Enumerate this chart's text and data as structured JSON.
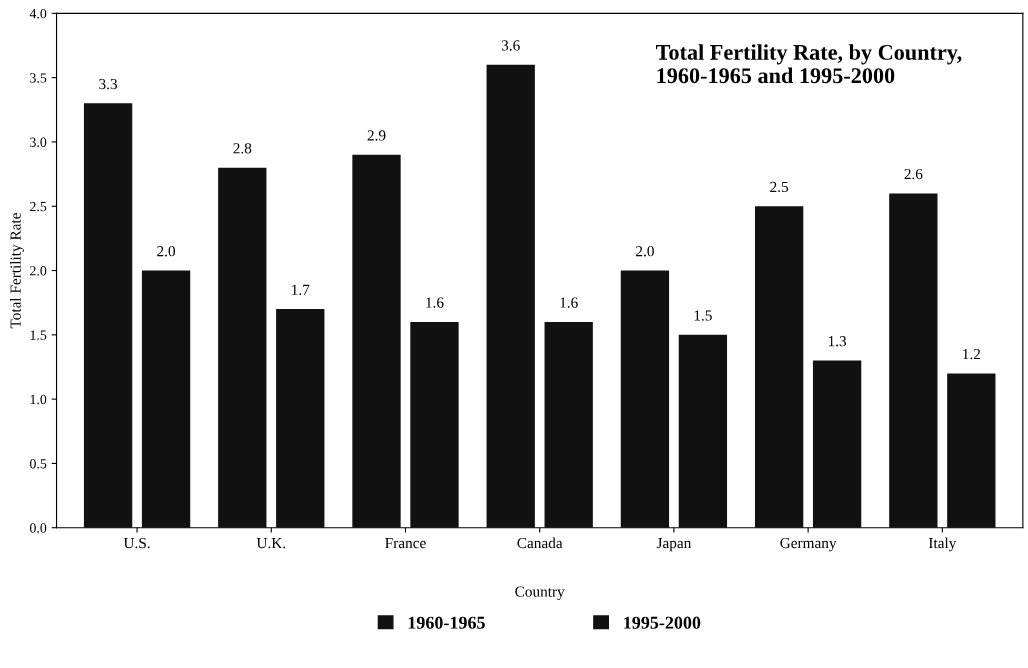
{
  "chart_data": {
    "type": "bar",
    "title": "Total Fertility Rate, by Country,\n1960-1965 and 1995-2000",
    "xlabel": "Country",
    "ylabel": "Total Fertility Rate",
    "categories": [
      "U.S.",
      "U.K.",
      "France",
      "Canada",
      "Japan",
      "Germany",
      "Italy"
    ],
    "series": [
      {
        "name": "1960-1965",
        "color": "#111111",
        "values": [
          3.3,
          2.8,
          2.9,
          3.6,
          2.0,
          2.5,
          2.6
        ],
        "value_labels": [
          "3.3",
          "2.8",
          "2.9",
          "3.6",
          "2.0",
          "2.5",
          "2.6"
        ]
      },
      {
        "name": "1995-2000",
        "color": "#111111",
        "values": [
          2.0,
          1.7,
          1.6,
          1.6,
          1.5,
          1.3,
          1.2
        ],
        "value_labels": [
          "2.0",
          "1.7",
          "1.6",
          "1.6",
          "1.5",
          "1.3",
          "1.2"
        ]
      }
    ],
    "ylim": [
      0,
      4
    ],
    "yticks": [
      {
        "value": 0,
        "label": "0.0"
      },
      {
        "value": 0.5,
        "label": "0.5"
      },
      {
        "value": 1,
        "label": "1.0"
      },
      {
        "value": 1.5,
        "label": "1.5"
      },
      {
        "value": 2,
        "label": "2.0"
      },
      {
        "value": 2.5,
        "label": "2.5"
      },
      {
        "value": 3,
        "label": "3.0"
      },
      {
        "value": 3.5,
        "label": "3.5"
      },
      {
        "value": 4,
        "label": "4.0"
      }
    ],
    "grid": false,
    "legend": "bottom"
  }
}
